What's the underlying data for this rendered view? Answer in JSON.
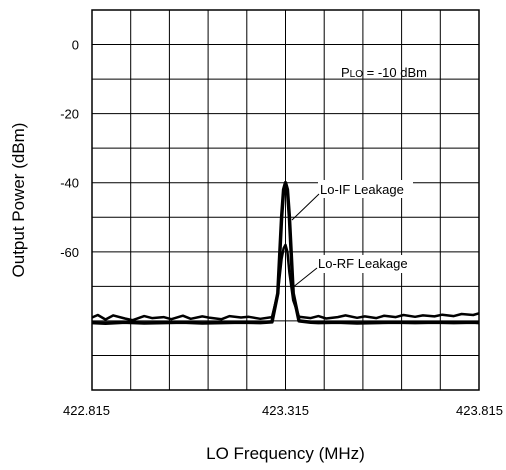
{
  "chart_data": {
    "type": "line",
    "title": "",
    "xlabel": "LO Frequency (MHz)",
    "ylabel": "Output Power (dBm)",
    "x_ticks": [
      "422.815",
      "423.315",
      "423.815"
    ],
    "y_ticks": [
      "0",
      "-20",
      "-40",
      "-60"
    ],
    "xlim": [
      422.815,
      423.815
    ],
    "ylim": [
      -100,
      10
    ],
    "grid": true,
    "annotations": {
      "plo_prefix": "P",
      "plo_sub": "LO",
      "plo_rest": " = -10 dBm",
      "lo_if": "Lo-IF Leakage",
      "lo_rf": "Lo-RF Leakage"
    },
    "series": [
      {
        "name": "Lo-IF Leakage",
        "color": "#000000",
        "x": [
          422.815,
          422.85,
          422.9,
          422.95,
          423.0,
          423.05,
          423.1,
          423.15,
          423.2,
          423.25,
          423.28,
          423.295,
          423.305,
          423.31,
          423.315,
          423.32,
          423.325,
          423.335,
          423.35,
          423.38,
          423.4,
          423.45,
          423.5,
          423.55,
          423.6,
          423.65,
          423.7,
          423.75,
          423.8,
          423.815
        ],
        "y": [
          -80.5,
          -80.7,
          -80.4,
          -80.6,
          -80.5,
          -80.4,
          -80.6,
          -80.5,
          -80.4,
          -80.5,
          -80.3,
          -72.0,
          -50.0,
          -42.0,
          -40.0,
          -42.0,
          -50.0,
          -72.0,
          -80.0,
          -80.4,
          -80.5,
          -80.4,
          -80.6,
          -80.5,
          -80.4,
          -80.5,
          -80.4,
          -80.5,
          -80.4,
          -80.5
        ]
      },
      {
        "name": "Lo-RF Leakage",
        "color": "#000000",
        "x": [
          422.815,
          422.83,
          422.85,
          422.87,
          422.9,
          422.92,
          422.95,
          422.97,
          423.0,
          423.02,
          423.05,
          423.07,
          423.1,
          423.12,
          423.15,
          423.17,
          423.2,
          423.22,
          423.25,
          423.28,
          423.295,
          423.305,
          423.31,
          423.315,
          423.32,
          423.325,
          423.335,
          423.35,
          423.38,
          423.4,
          423.42,
          423.45,
          423.47,
          423.5,
          423.52,
          423.55,
          423.57,
          423.6,
          423.62,
          423.65,
          423.67,
          423.7,
          423.72,
          423.75,
          423.77,
          423.8,
          423.815
        ],
        "y": [
          -79.0,
          -78.3,
          -79.6,
          -78.4,
          -79.3,
          -79.8,
          -78.6,
          -79.2,
          -78.9,
          -79.5,
          -78.5,
          -79.4,
          -78.7,
          -79.1,
          -79.5,
          -78.6,
          -79.0,
          -78.8,
          -79.4,
          -78.9,
          -72.0,
          -62.0,
          -59.0,
          -58.0,
          -60.0,
          -66.0,
          -74.0,
          -78.8,
          -79.2,
          -78.6,
          -79.3,
          -78.9,
          -78.4,
          -79.1,
          -78.7,
          -79.2,
          -78.5,
          -78.9,
          -78.3,
          -78.8,
          -78.4,
          -78.7,
          -78.2,
          -78.6,
          -78.0,
          -78.3,
          -77.8
        ]
      }
    ]
  }
}
